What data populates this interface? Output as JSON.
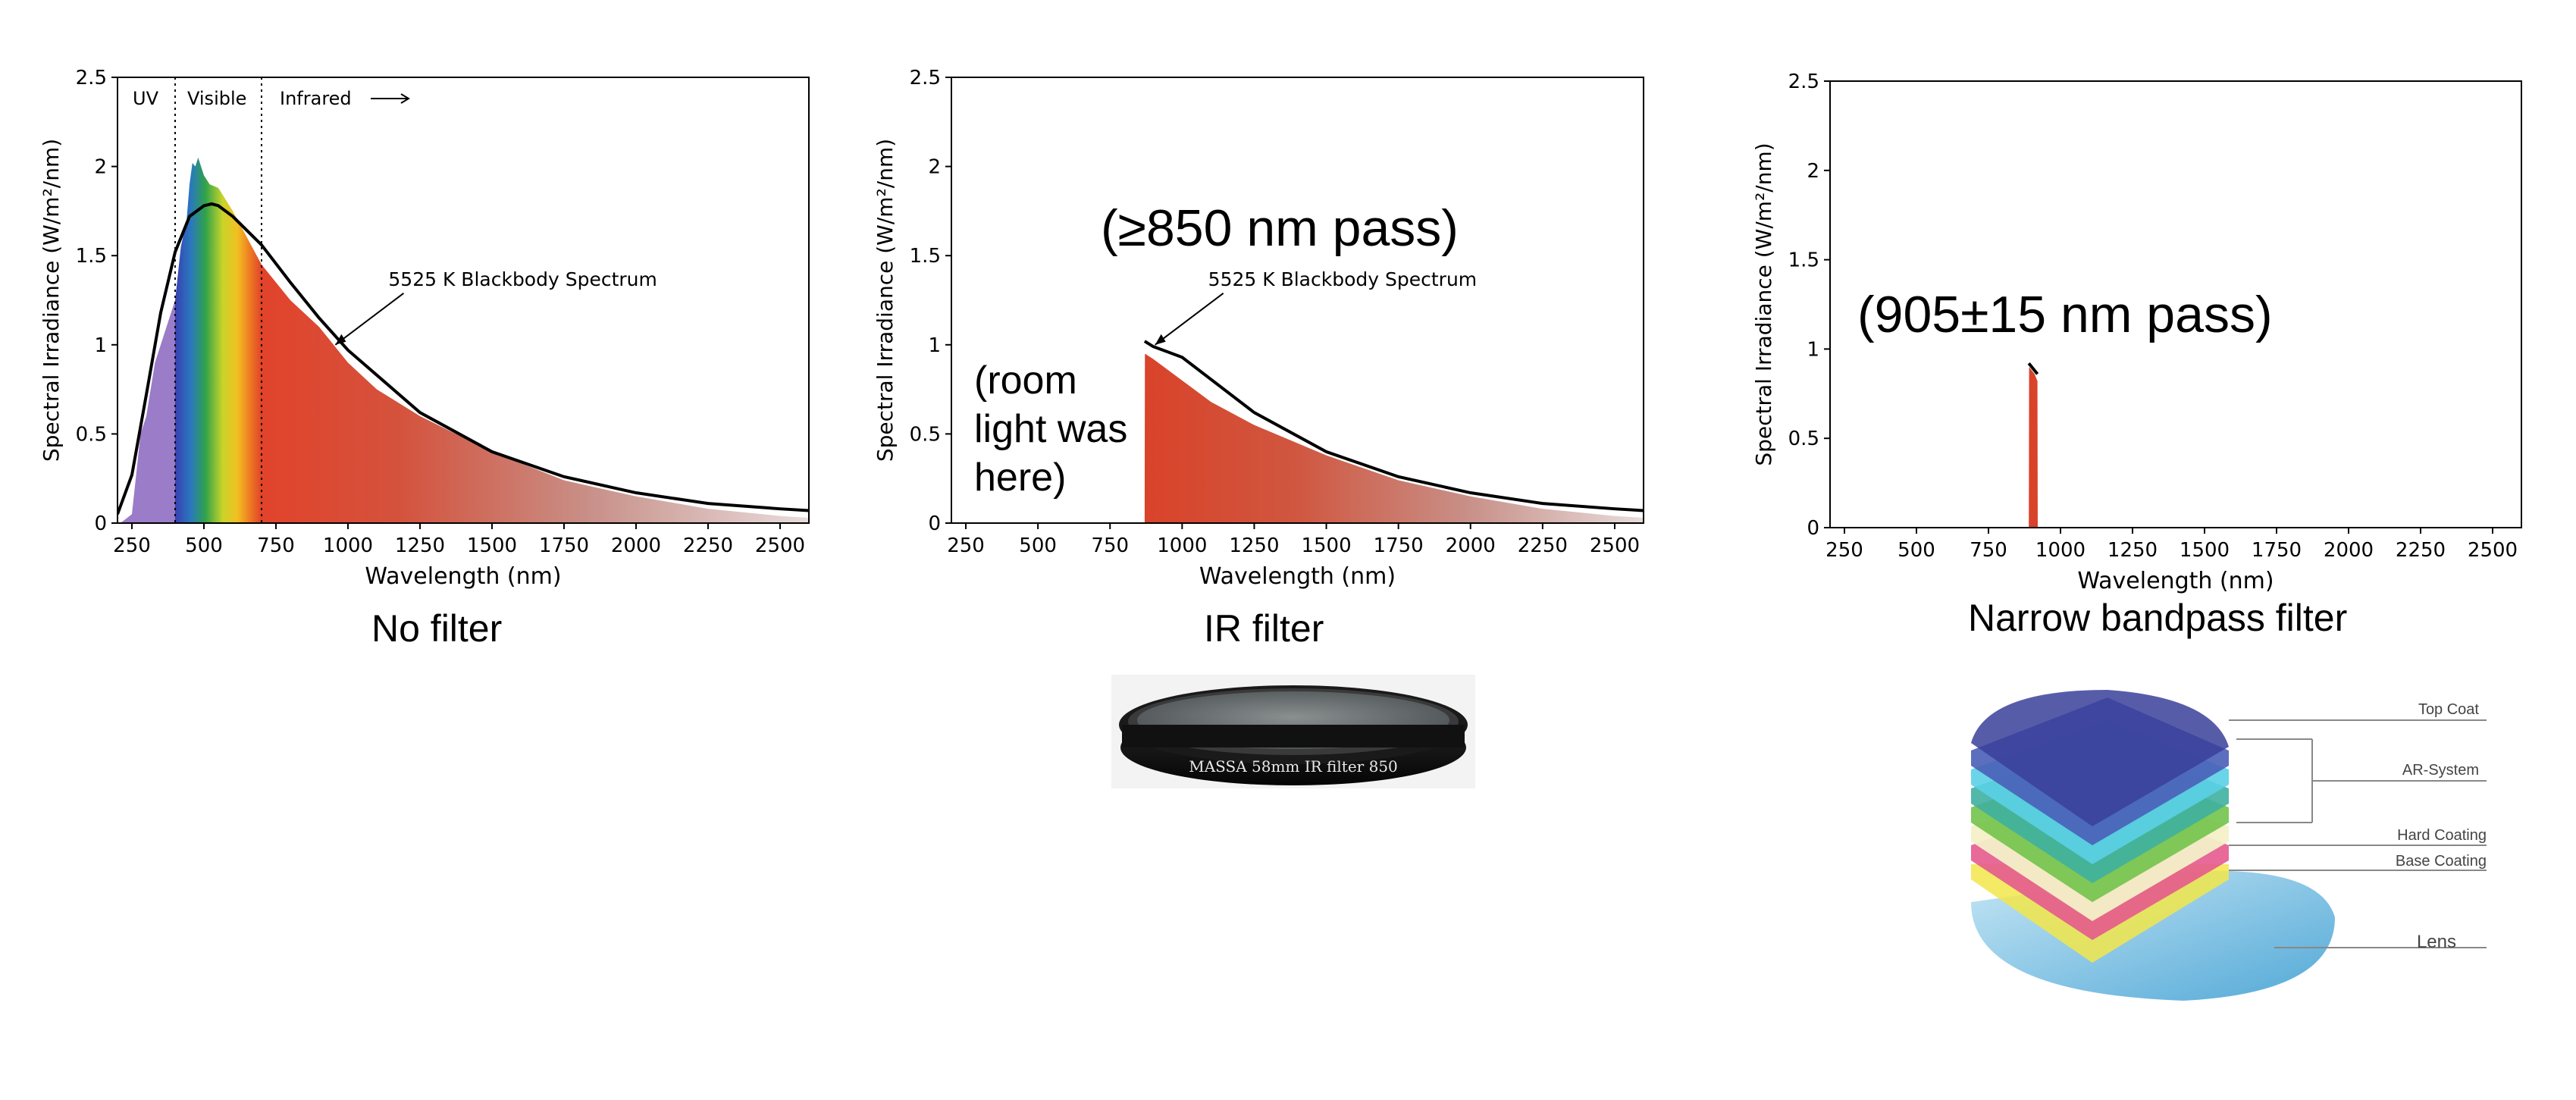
{
  "chart_data": [
    {
      "type": "area",
      "xlabel": "Wavelength (nm)",
      "ylabel": "Spectral Irradiance (W/m²/nm)",
      "xlim": [
        200,
        2600
      ],
      "ylim": [
        0,
        2.5
      ],
      "xticks": [
        250,
        500,
        750,
        1000,
        1250,
        1500,
        1750,
        2000,
        2250,
        2500
      ],
      "yticks": [
        0,
        0.5,
        1,
        1.5,
        2,
        2.5
      ],
      "grid": false,
      "band_labels": [
        "UV",
        "Visible",
        "Infrared"
      ],
      "band_edges": [
        400,
        700
      ],
      "annotation": "5525 K Blackbody Spectrum",
      "annotation_point": [
        930,
        1.0
      ],
      "spectrum": {
        "x": [
          210,
          250,
          280,
          300,
          330,
          360,
          380,
          400,
          420,
          440,
          450,
          460,
          470,
          480,
          500,
          520,
          550,
          600,
          650,
          700,
          750,
          800,
          900,
          1000,
          1100,
          1250,
          1500,
          1750,
          2000,
          2250,
          2500,
          2600
        ],
        "y": [
          0.0,
          0.05,
          0.5,
          0.6,
          0.9,
          1.05,
          1.15,
          1.25,
          1.55,
          1.7,
          1.9,
          2.02,
          2.0,
          2.05,
          1.95,
          1.9,
          1.88,
          1.75,
          1.6,
          1.45,
          1.35,
          1.25,
          1.1,
          0.9,
          0.75,
          0.6,
          0.4,
          0.24,
          0.15,
          0.08,
          0.04,
          0.03
        ]
      },
      "blackbody": {
        "x": [
          200,
          250,
          300,
          350,
          400,
          450,
          500,
          527,
          550,
          600,
          700,
          800,
          900,
          1000,
          1250,
          1500,
          1750,
          2000,
          2250,
          2500,
          2600
        ],
        "y": [
          0.05,
          0.27,
          0.72,
          1.18,
          1.52,
          1.72,
          1.78,
          1.79,
          1.78,
          1.72,
          1.56,
          1.35,
          1.15,
          0.97,
          0.62,
          0.4,
          0.26,
          0.17,
          0.11,
          0.08,
          0.07
        ]
      }
    },
    {
      "type": "area",
      "xlabel": "Wavelength (nm)",
      "ylabel": "Spectral Irradiance (W/m²/nm)",
      "xlim": [
        200,
        2600
      ],
      "ylim": [
        0,
        2.5
      ],
      "xticks": [
        250,
        500,
        750,
        1000,
        1250,
        1500,
        1750,
        2000,
        2250,
        2500
      ],
      "yticks": [
        0,
        0.5,
        1,
        1.5,
        2,
        2.5
      ],
      "grid": false,
      "annotation": "5525 K Blackbody Spectrum",
      "annotation_point": [
        880,
        1.0
      ],
      "spectrum": {
        "x": [
          870,
          871,
          900,
          1000,
          1100,
          1250,
          1500,
          1750,
          2000,
          2250,
          2500,
          2600
        ],
        "y": [
          0.0,
          0.95,
          0.92,
          0.8,
          0.68,
          0.55,
          0.38,
          0.24,
          0.15,
          0.08,
          0.04,
          0.03
        ]
      },
      "blackbody": {
        "x": [
          870,
          900,
          1000,
          1250,
          1500,
          1750,
          2000,
          2250,
          2500,
          2600
        ],
        "y": [
          1.02,
          0.99,
          0.93,
          0.62,
          0.4,
          0.26,
          0.17,
          0.11,
          0.08,
          0.07
        ]
      }
    },
    {
      "type": "area",
      "xlabel": "Wavelength (nm)",
      "ylabel": "Spectral Irradiance (W/m²/nm)",
      "xlim": [
        200,
        2600
      ],
      "ylim": [
        0,
        2.5
      ],
      "xticks": [
        250,
        500,
        750,
        1000,
        1250,
        1500,
        1750,
        2000,
        2250,
        2500
      ],
      "yticks": [
        0,
        0.5,
        1,
        1.5,
        2,
        2.5
      ],
      "grid": false,
      "spectrum": {
        "x": [
          890,
          891,
          910,
          920,
          921
        ],
        "y": [
          0.0,
          0.9,
          0.86,
          0.82,
          0.0
        ]
      },
      "blackbody": {
        "x": [
          890,
          920
        ],
        "y": [
          0.92,
          0.86
        ]
      }
    }
  ],
  "captions": [
    "No filter",
    "IR filter",
    "Narrow bandpass filter"
  ],
  "notes": {
    "ir_pass": "(≥850 nm pass)",
    "narrow_pass": "(905±15 nm pass)",
    "room_light": [
      "(room",
      "light was",
      "here)"
    ]
  },
  "ir_filter_photo": {
    "label": "MASSA  58mm   IR  filter   850"
  },
  "coating_diagram": {
    "labels": [
      "Top Coat",
      "AR-System",
      "Hard Coating",
      "Base Coating",
      "Lens"
    ]
  },
  "colors": {
    "ir_fill": "#d9432a",
    "blackbody_line": "#000000",
    "axis": "#000000"
  }
}
